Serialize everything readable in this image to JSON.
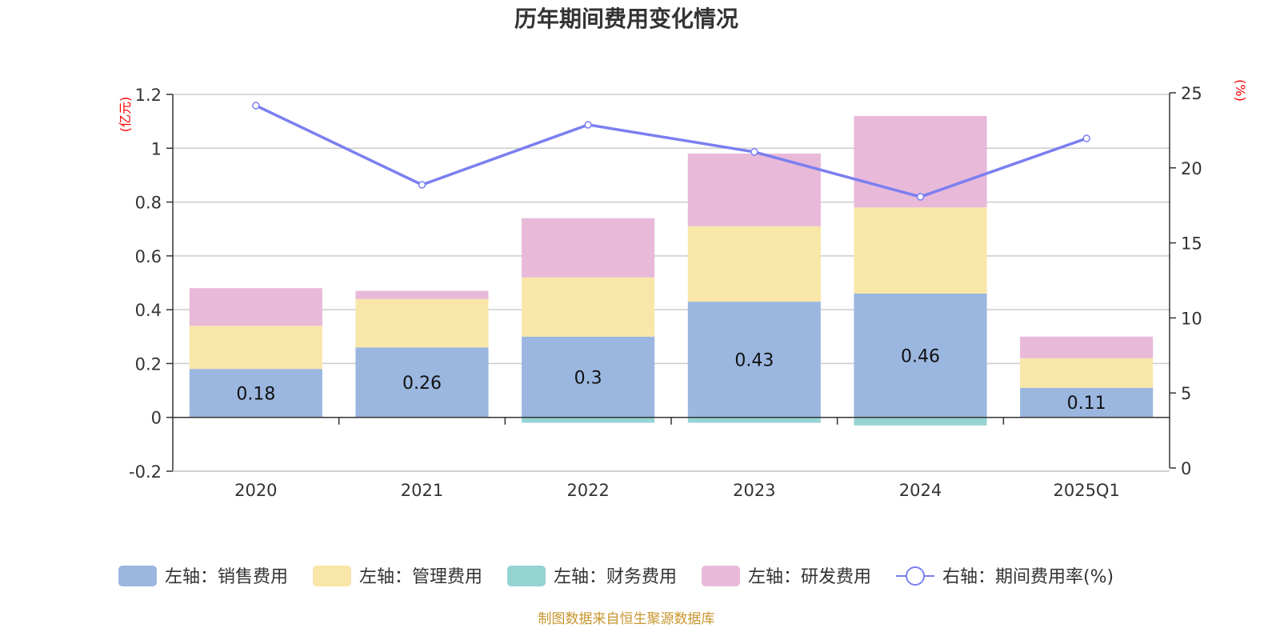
{
  "chart_data": {
    "type": "bar",
    "subtype": "stacked-bar-with-line",
    "title": "历年期间费用变化情况",
    "categories": [
      "2020",
      "2021",
      "2022",
      "2023",
      "2024",
      "2025Q1"
    ],
    "left_axis": {
      "unit_label": "(亿元)",
      "ylim": [
        -0.2,
        1.2
      ],
      "ticks": [
        -0.2,
        0,
        0.2,
        0.4,
        0.6,
        0.8,
        1,
        1.2
      ],
      "tick_labels": [
        "-0.2",
        "0",
        "0.2",
        "0.4",
        "0.6",
        "0.8",
        "1",
        "1.2"
      ]
    },
    "right_axis": {
      "unit_label": "(%)",
      "ylim": [
        0,
        25
      ],
      "ticks": [
        0,
        5,
        10,
        15,
        20,
        25
      ],
      "tick_labels": [
        "0",
        "5",
        "10",
        "15",
        "20",
        "25"
      ]
    },
    "grid": true,
    "series": [
      {
        "name": "左轴：销售费用",
        "axis": "left",
        "type": "bar",
        "color": "#9bb7e0",
        "values": [
          0.18,
          0.26,
          0.3,
          0.43,
          0.46,
          0.11
        ],
        "data_labels": [
          "0.18",
          "0.26",
          "0.3",
          "0.43",
          "0.46",
          "0.11"
        ]
      },
      {
        "name": "左轴：管理费用",
        "axis": "left",
        "type": "bar",
        "color": "#f8e7a9",
        "values": [
          0.16,
          0.18,
          0.22,
          0.28,
          0.32,
          0.11
        ]
      },
      {
        "name": "左轴：财务费用",
        "axis": "left",
        "type": "bar",
        "color": "#96d3d3",
        "values": [
          0,
          0,
          -0.02,
          -0.02,
          -0.03,
          0
        ]
      },
      {
        "name": "左轴：研发费用",
        "axis": "left",
        "type": "bar",
        "color": "#e8b9d9",
        "values": [
          0.14,
          0.03,
          0.22,
          0.27,
          0.34,
          0.08
        ]
      },
      {
        "name": "右轴：期间费用率(%)",
        "axis": "right",
        "type": "line",
        "color": "#7b7ff0",
        "values": [
          24.15,
          18.87,
          22.87,
          21.06,
          18.07,
          21.96
        ]
      }
    ],
    "legend_position": "bottom",
    "source_note": "制图数据来自恒生聚源数据库"
  }
}
